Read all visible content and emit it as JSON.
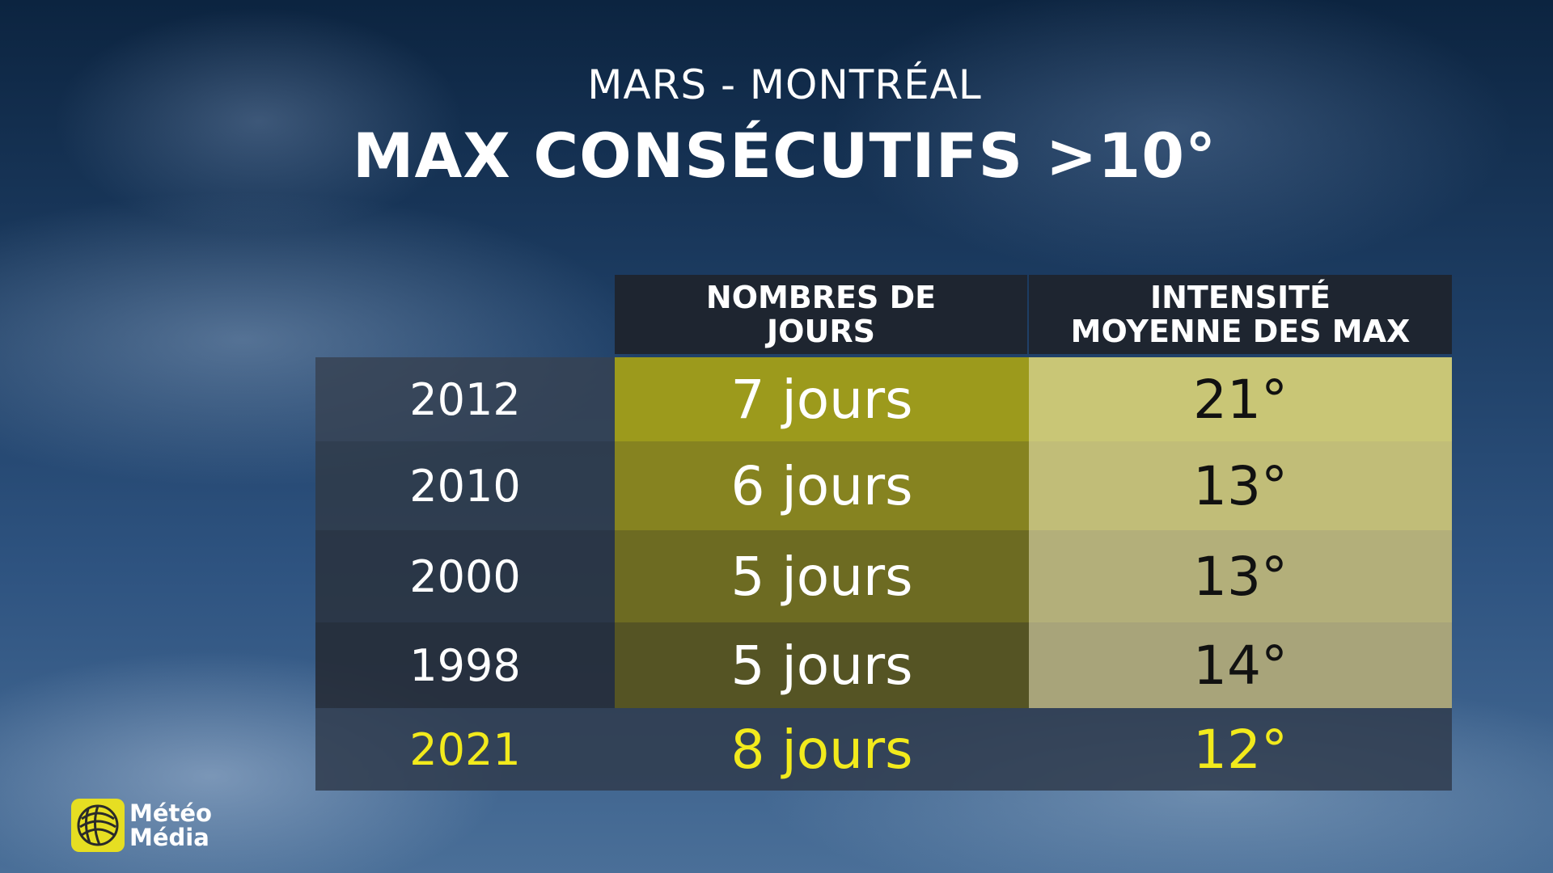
{
  "header": {
    "subtitle": "MARS - MONTRÉAL",
    "title": "MAX CONSÉCUTIFS >10°"
  },
  "table": {
    "columns": [
      {
        "line1": "NOMBRES DE",
        "line2": "JOURS"
      },
      {
        "line1": "INTENSITÉ",
        "line2": "MOYENNE DES MAX"
      }
    ],
    "rows": [
      {
        "year": "2012",
        "days": "7 jours",
        "intensity": "21°"
      },
      {
        "year": "2010",
        "days": "6 jours",
        "intensity": "13°"
      },
      {
        "year": "2000",
        "days": "5 jours",
        "intensity": "13°"
      },
      {
        "year": "1998",
        "days": "5 jours",
        "intensity": "14°"
      },
      {
        "year": "2021",
        "days": "8 jours",
        "intensity": "12°"
      }
    ]
  },
  "logo": {
    "line1": "Météo",
    "line2": "Média"
  },
  "colors": {
    "highlight_text": "#f2ea1c",
    "header_bg": "#1e2530",
    "logo_yellow": "#e6de22"
  }
}
